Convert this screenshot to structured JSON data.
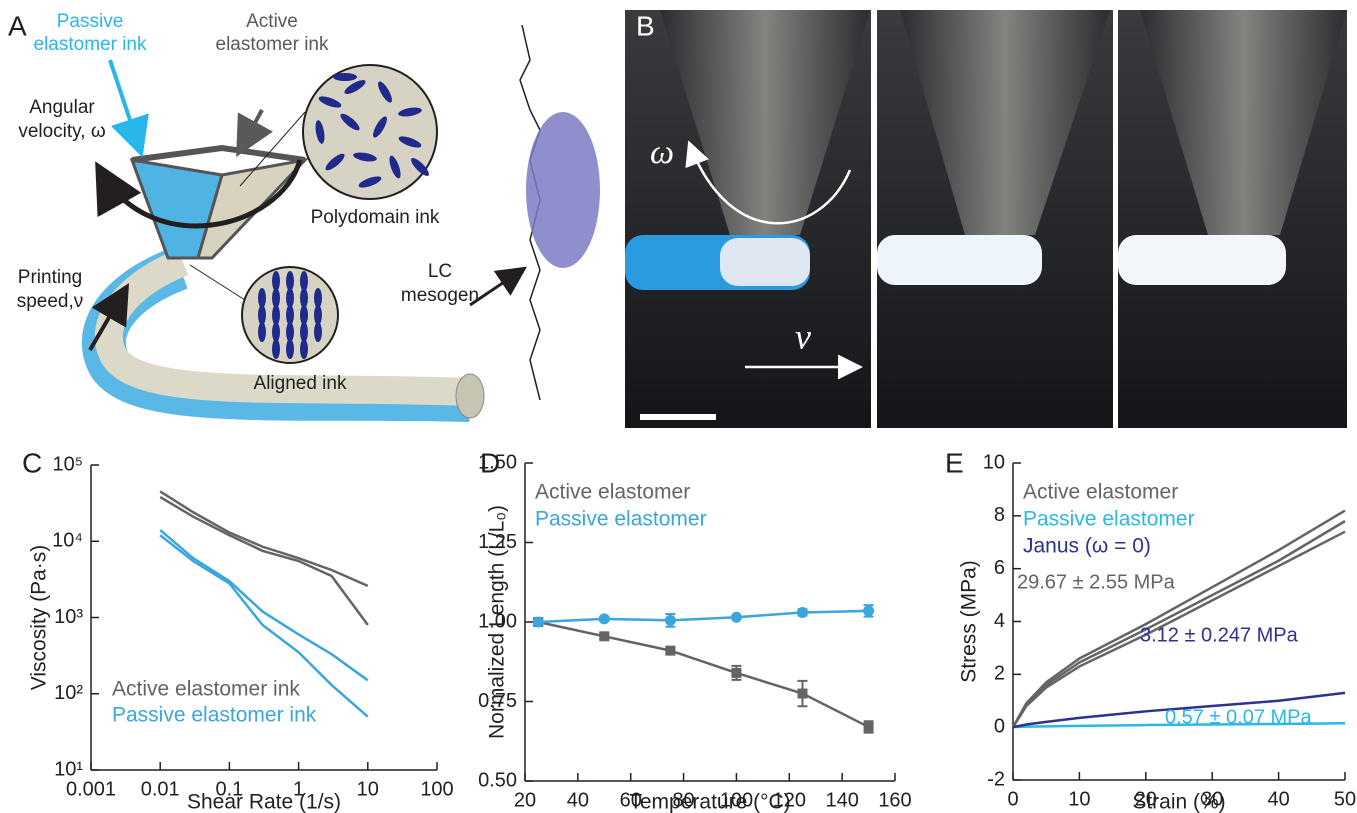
{
  "figure": {
    "panel_a": {
      "label": "A",
      "passive_ink": [
        "Passive",
        "elastomer ink"
      ],
      "active_ink": [
        "Active",
        "elastomer ink"
      ],
      "angular_velocity": [
        "Angular",
        "velocity, ω"
      ],
      "polydomain": "Polydomain ink",
      "printing_speed": [
        "Printing",
        "speed,ν"
      ],
      "aligned": "Aligned ink",
      "mesogen": [
        "LC",
        "mesogen"
      ]
    },
    "panel_b": {
      "label": "B",
      "omega": "ω",
      "v": "v"
    }
  },
  "chart_data": [
    {
      "type": "line",
      "label": "C",
      "xlabel": "Shear Rate (1/s)",
      "ylabel": "Viscosity (Pa·s)",
      "xscale": "log",
      "yscale": "log",
      "xlim": [
        0.001,
        100
      ],
      "ylim": [
        10,
        100000
      ],
      "xticks": [
        0.001,
        0.01,
        0.1,
        1,
        10,
        100
      ],
      "yticks": [
        {
          "value": 10,
          "label": "10¹"
        },
        {
          "value": 100,
          "label": "10²"
        },
        {
          "value": 1000,
          "label": "10³"
        },
        {
          "value": 10000,
          "label": "10⁴"
        },
        {
          "value": 100000,
          "label": "10⁵"
        }
      ],
      "legend": "lower left",
      "x": [
        0.01,
        0.03,
        0.1,
        0.3,
        1,
        3,
        10
      ],
      "series": [
        {
          "name": "Active elastomer ink",
          "color": "#636466",
          "values": [
            45000,
            24000,
            13000,
            8500,
            6000,
            4200,
            2600
          ]
        },
        {
          "color": "#636466",
          "values": [
            38000,
            21000,
            12000,
            7500,
            5500,
            3500,
            800
          ]
        },
        {
          "name": "Passive elastomer ink",
          "color": "#3aa6dd",
          "values": [
            14000,
            6000,
            3000,
            1200,
            600,
            330,
            150
          ]
        },
        {
          "color": "#3aa6dd",
          "values": [
            12000,
            5500,
            2800,
            800,
            350,
            130,
            50
          ]
        }
      ]
    },
    {
      "type": "line",
      "label": "D",
      "xlabel": "Temperature (°C)",
      "ylabel": "Normalized Length (L/L₀)",
      "xlim": [
        20,
        160
      ],
      "ylim": [
        0.5,
        1.5
      ],
      "xticks": [
        20,
        40,
        60,
        80,
        100,
        120,
        140,
        160
      ],
      "yticks": [
        {
          "value": 0.5,
          "label": "0.50"
        },
        0.75,
        {
          "value": 1,
          "label": "1.00"
        },
        1.25,
        {
          "value": 1.5,
          "label": "1.50"
        }
      ],
      "legend": "upper left",
      "x": [
        25,
        50,
        75,
        100,
        125,
        150
      ],
      "series": [
        {
          "name": "Active elastomer",
          "color": "#636466",
          "marker": "square",
          "values": [
            1.0,
            0.955,
            0.91,
            0.84,
            0.775,
            0.67
          ],
          "errors": [
            0.005,
            0.008,
            0.01,
            0.022,
            0.04,
            0.018
          ]
        },
        {
          "name": "Passive elastomer",
          "color": "#3aa6dd",
          "marker": "circle",
          "values": [
            1.0,
            1.01,
            1.005,
            1.015,
            1.03,
            1.035
          ],
          "errors": [
            0.005,
            0.006,
            0.02,
            0.005,
            0.01,
            0.018
          ]
        }
      ]
    },
    {
      "type": "line",
      "label": "E",
      "xlabel": "Strain (%)",
      "ylabel": "Stress (MPa)",
      "xlim": [
        0,
        50
      ],
      "ylim": [
        -2,
        10
      ],
      "xticks": [
        0,
        10,
        20,
        30,
        40,
        50
      ],
      "yticks": [
        -2,
        0,
        2,
        4,
        6,
        8,
        10
      ],
      "legend": "upper left",
      "x": [
        0,
        2,
        5,
        10,
        20,
        30,
        40,
        50
      ],
      "series": [
        {
          "name": "Active elastomer",
          "color": "#636466",
          "values": [
            0,
            0.9,
            1.7,
            2.6,
            3.9,
            5.3,
            6.7,
            8.2
          ]
        },
        {
          "color": "#636466",
          "values": [
            0,
            0.85,
            1.6,
            2.45,
            3.7,
            5.0,
            6.3,
            7.8
          ]
        },
        {
          "color": "#636466",
          "values": [
            0,
            0.8,
            1.5,
            2.3,
            3.5,
            4.8,
            6.1,
            7.4
          ]
        },
        {
          "name": "Passive elastomer",
          "color": "#2bb8e6",
          "values": [
            0,
            0.02,
            0.03,
            0.05,
            0.08,
            0.1,
            0.12,
            0.15
          ]
        },
        {
          "name": "Janus (ω = 0)",
          "color": "#2e3192",
          "values": [
            0,
            0.1,
            0.2,
            0.35,
            0.6,
            0.8,
            1.0,
            1.3
          ]
        }
      ],
      "annotations": [
        {
          "text": "29.67 ± 2.55 MPa",
          "color": "#636466"
        },
        {
          "text": "3.12 ± 0.247 MPa",
          "color": "#2e3192"
        },
        {
          "text": "0.57 ± 0.07 MPa",
          "color": "#2bb8e6"
        }
      ]
    }
  ]
}
